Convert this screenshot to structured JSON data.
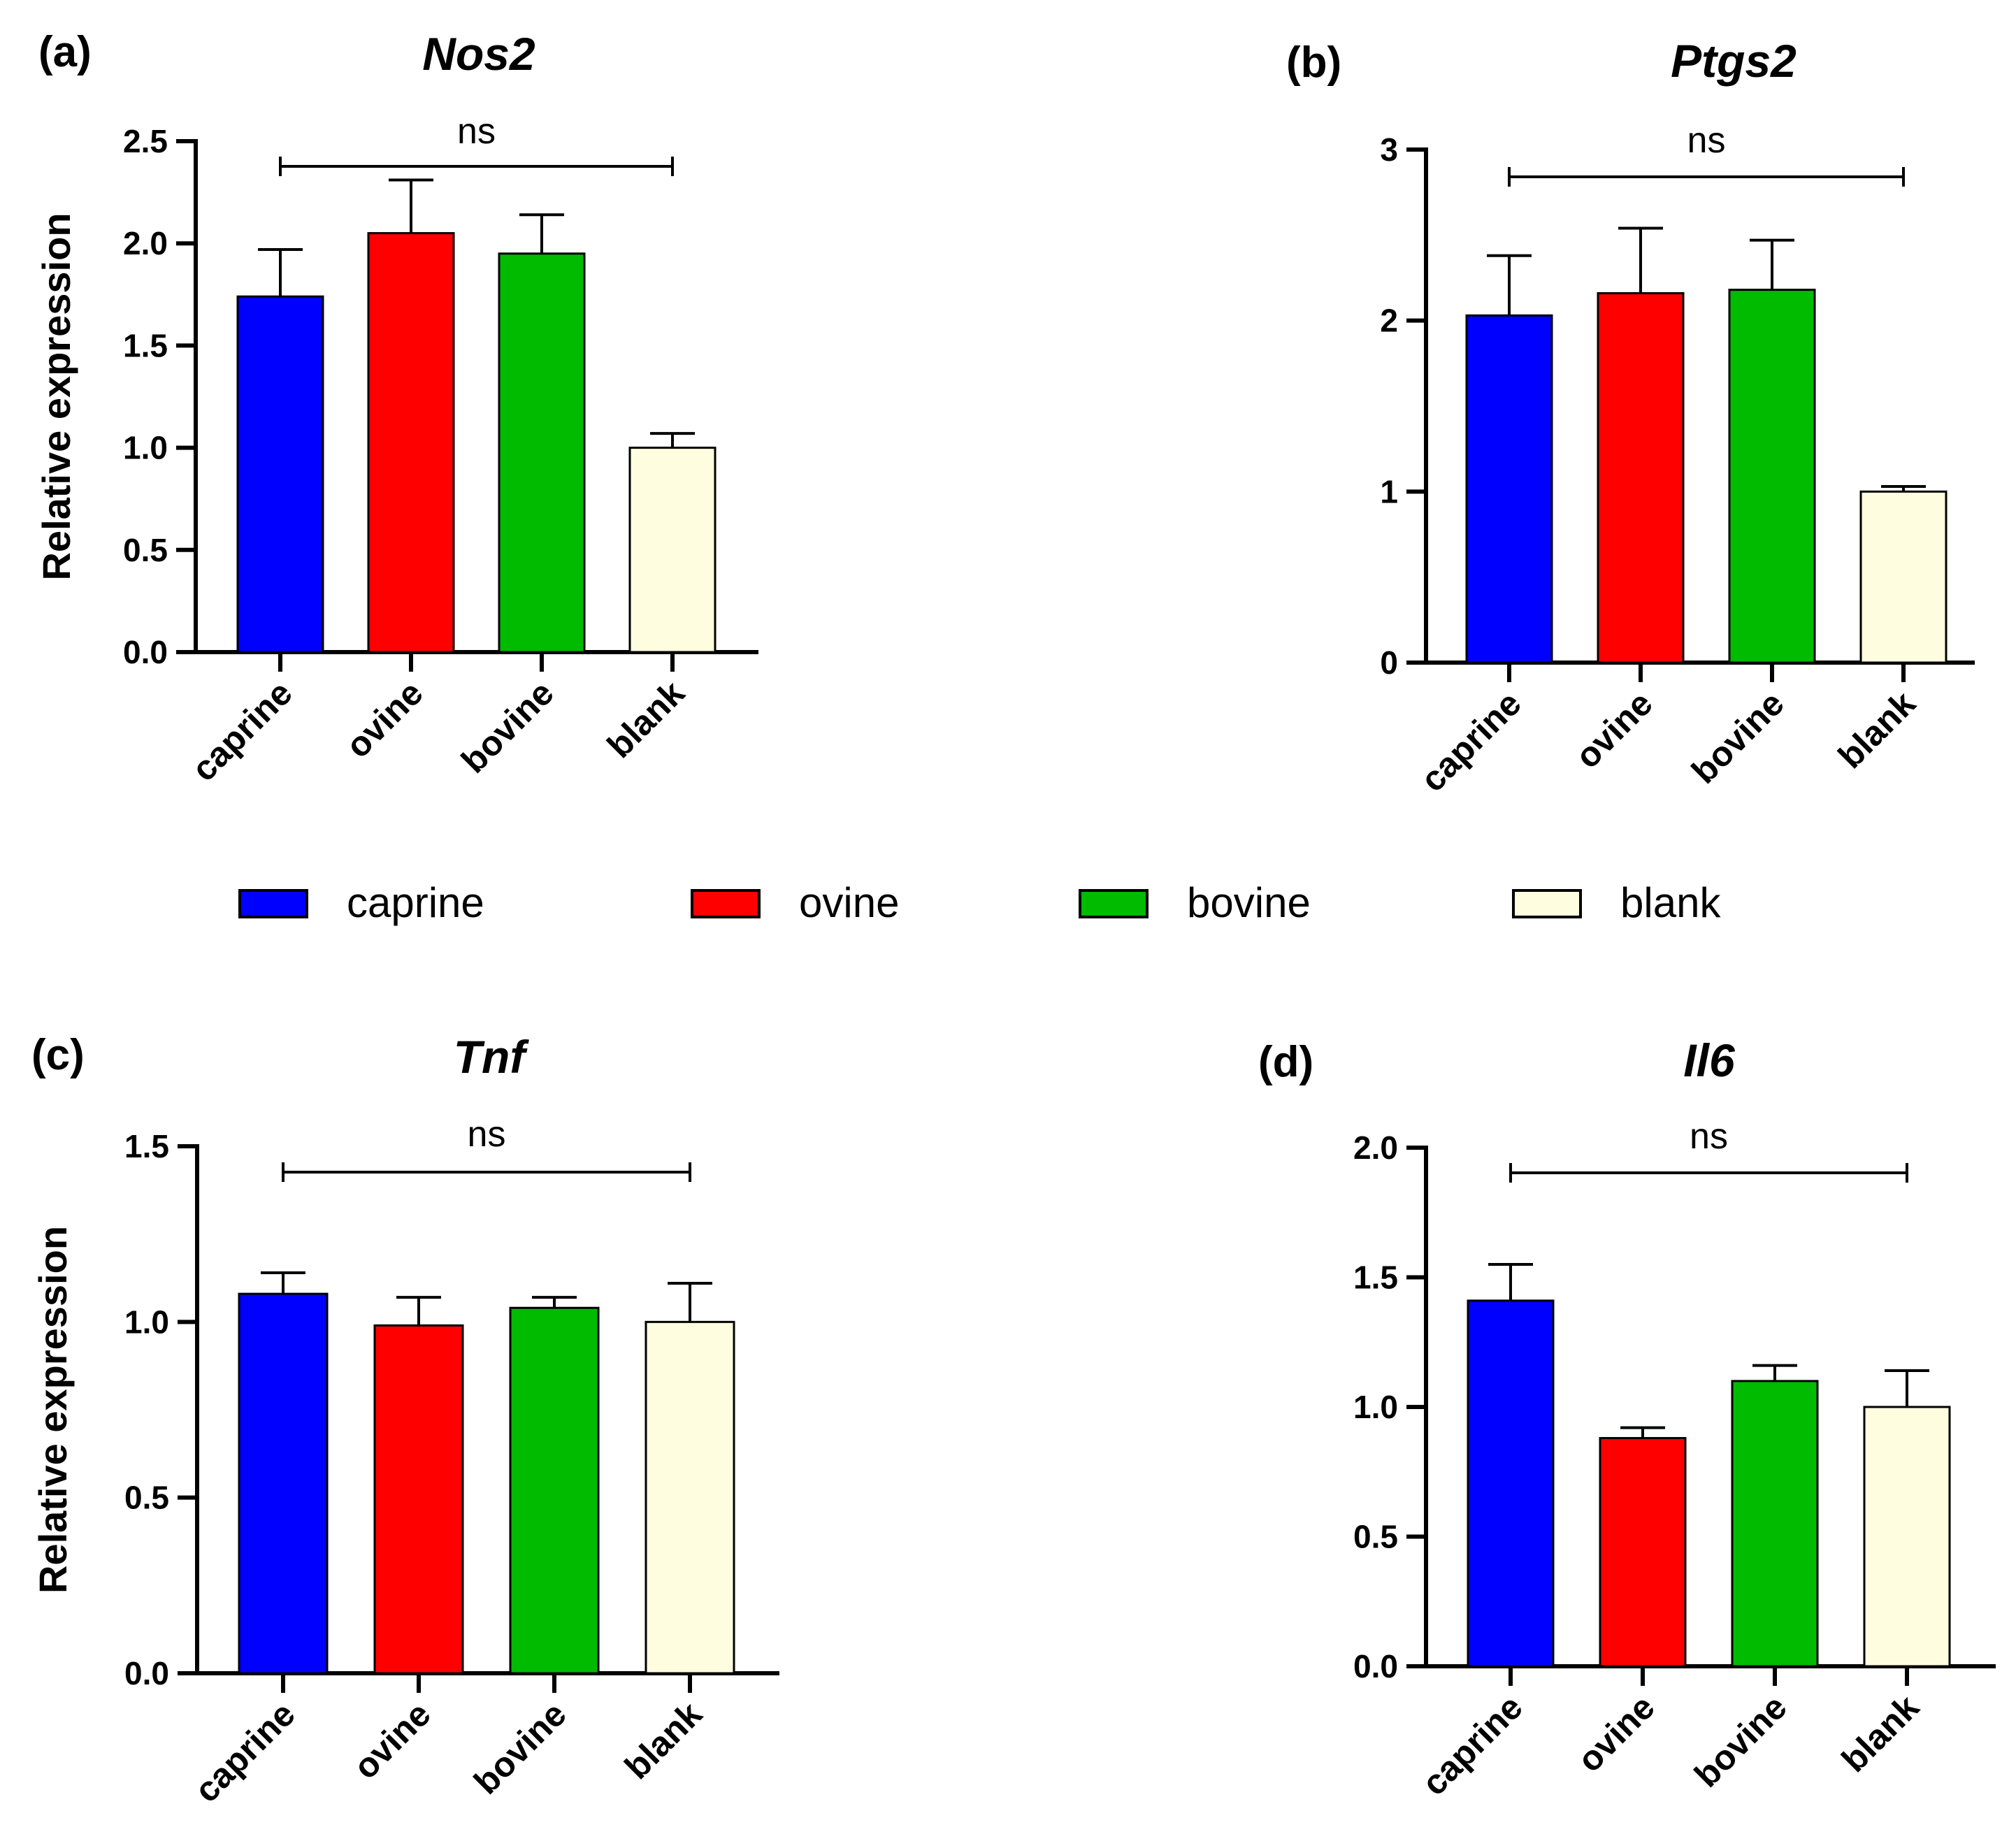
{
  "chart_data": [
    {
      "type": "bar",
      "panel_label": "(a)",
      "title": "Nos2",
      "ylabel": "Relative expression",
      "categories": [
        "caprine",
        "ovine",
        "bovine",
        "blank"
      ],
      "values": [
        1.74,
        2.05,
        1.95,
        1.0
      ],
      "errors": [
        0.23,
        0.26,
        0.19,
        0.07
      ],
      "ylim": [
        0,
        2.5
      ],
      "yticks": [
        0.0,
        0.5,
        1.0,
        1.5,
        2.0,
        2.5
      ],
      "ytick_labels": [
        "0.0",
        "0.5",
        "1.0",
        "1.5",
        "2.0",
        "2.5"
      ],
      "significance": "ns"
    },
    {
      "type": "bar",
      "panel_label": "(b)",
      "title": "Ptgs2",
      "ylabel": "",
      "categories": [
        "caprine",
        "ovine",
        "bovine",
        "blank"
      ],
      "values": [
        2.03,
        2.16,
        2.18,
        1.0
      ],
      "errors": [
        0.35,
        0.38,
        0.29,
        0.03
      ],
      "ylim": [
        0,
        3
      ],
      "yticks": [
        0,
        1,
        2,
        3
      ],
      "ytick_labels": [
        "0",
        "1",
        "2",
        "3"
      ],
      "significance": "ns"
    },
    {
      "type": "bar",
      "panel_label": "(c)",
      "title": "Tnf",
      "ylabel": "Relative expression",
      "categories": [
        "caprine",
        "ovine",
        "bovine",
        "blank"
      ],
      "values": [
        1.08,
        0.99,
        1.04,
        1.0
      ],
      "errors": [
        0.06,
        0.08,
        0.03,
        0.11
      ],
      "ylim": [
        0,
        1.5
      ],
      "yticks": [
        0.0,
        0.5,
        1.0,
        1.5
      ],
      "ytick_labels": [
        "0.0",
        "0.5",
        "1.0",
        "1.5"
      ],
      "significance": "ns"
    },
    {
      "type": "bar",
      "panel_label": "(d)",
      "title": "Il6",
      "ylabel": "",
      "categories": [
        "caprine",
        "ovine",
        "bovine",
        "blank"
      ],
      "values": [
        1.41,
        0.88,
        1.1,
        1.0
      ],
      "errors": [
        0.14,
        0.04,
        0.06,
        0.14
      ],
      "ylim": [
        0,
        2.0
      ],
      "yticks": [
        0.0,
        0.5,
        1.0,
        1.5,
        2.0
      ],
      "ytick_labels": [
        "0.0",
        "0.5",
        "1.0",
        "1.5",
        "2.0"
      ],
      "significance": "ns"
    }
  ],
  "legend": [
    {
      "label": "caprine",
      "color": "#0000ff"
    },
    {
      "label": "ovine",
      "color": "#ff0000"
    },
    {
      "label": "bovine",
      "color": "#00bb00"
    },
    {
      "label": "blank",
      "color": "#fffde0"
    }
  ],
  "colors": {
    "caprine": "#0000ff",
    "ovine": "#ff0000",
    "bovine": "#00bb00",
    "blank": "#fffde0"
  }
}
